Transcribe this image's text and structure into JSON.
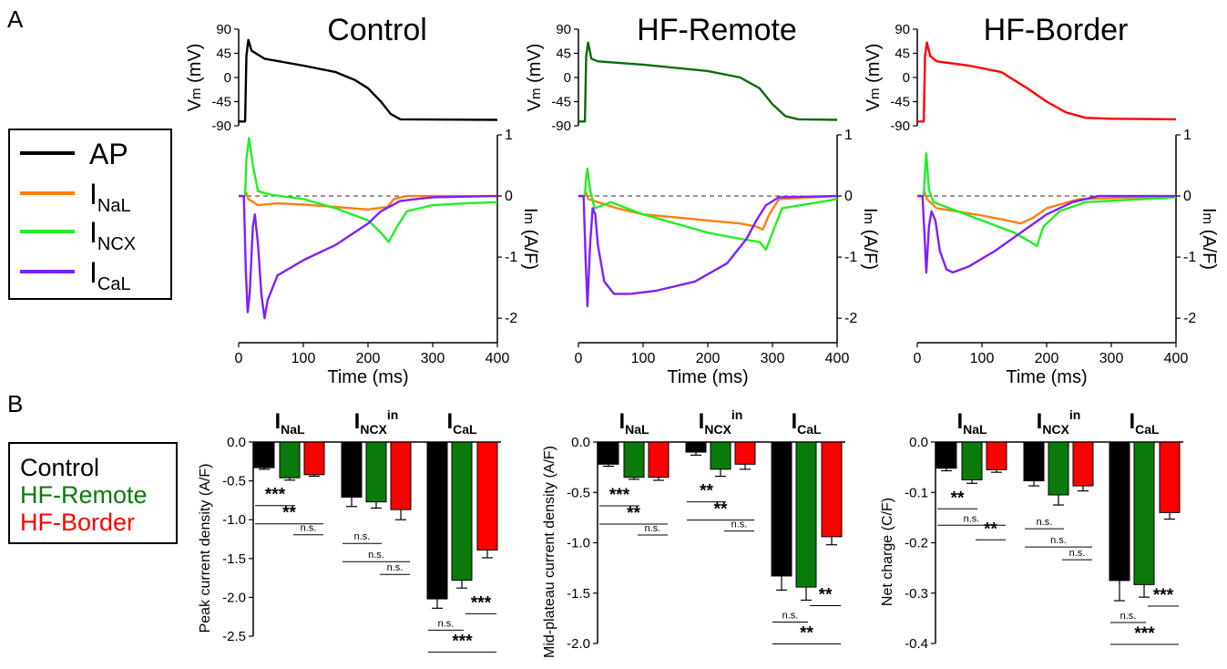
{
  "panel_labels": {
    "a": "A",
    "b": "B"
  },
  "legend_a": {
    "items": [
      {
        "main": "AP",
        "sub": "",
        "color": "#000000"
      },
      {
        "main": "I",
        "sub": "NaL",
        "color": "#ff7f0e"
      },
      {
        "main": "I",
        "sub": "NCX",
        "color": "#22ee22"
      },
      {
        "main": "I",
        "sub": "CaL",
        "color": "#7f1fff"
      }
    ]
  },
  "legend_b": {
    "items": [
      {
        "label": "Control",
        "color": "#000000"
      },
      {
        "label": "HF-Remote",
        "color": "#0a7a0a"
      },
      {
        "label": "HF-Border",
        "color": "#ff0000"
      }
    ]
  },
  "chart_data": [
    {
      "type": "line",
      "title": "Control",
      "ap_color": "#000000",
      "vm_ylim": [
        -90,
        90
      ],
      "vm_ticks": [
        "90",
        "45",
        "0",
        "-45",
        "-90"
      ],
      "vm_ylabel": "V",
      "vm_ylabel_sub": "m",
      "vm_ylabel_unit": " (mV)",
      "im_ylim": [
        -2.4,
        1
      ],
      "im_ticks": [
        "1",
        "0",
        "-1",
        "-2"
      ],
      "im_ylabel": "I",
      "im_ylabel_sub": "m",
      "im_ylabel_unit": " (A/F)",
      "xlim": [
        0,
        400
      ],
      "x_ticks": [
        "0",
        "100",
        "200",
        "300",
        "400"
      ],
      "xlabel": "Time (ms)",
      "series": {
        "AP": [
          [
            0,
            -82
          ],
          [
            10,
            -82
          ],
          [
            12,
            40
          ],
          [
            15,
            70
          ],
          [
            20,
            50
          ],
          [
            40,
            35
          ],
          [
            100,
            22
          ],
          [
            150,
            10
          ],
          [
            180,
            -5
          ],
          [
            200,
            -20
          ],
          [
            220,
            -45
          ],
          [
            235,
            -68
          ],
          [
            250,
            -78
          ],
          [
            400,
            -79
          ]
        ],
        "INaL": [
          [
            0,
            0
          ],
          [
            10,
            0
          ],
          [
            12,
            0.05
          ],
          [
            15,
            -0.05
          ],
          [
            30,
            -0.15
          ],
          [
            60,
            -0.12
          ],
          [
            100,
            -0.14
          ],
          [
            150,
            -0.18
          ],
          [
            200,
            -0.22
          ],
          [
            230,
            -0.18
          ],
          [
            240,
            -0.05
          ],
          [
            260,
            0
          ],
          [
            400,
            0
          ]
        ],
        "INCX": [
          [
            0,
            0
          ],
          [
            10,
            0
          ],
          [
            12,
            0.6
          ],
          [
            16,
            0.95
          ],
          [
            22,
            0.5
          ],
          [
            30,
            0.08
          ],
          [
            50,
            0.02
          ],
          [
            100,
            -0.05
          ],
          [
            150,
            -0.2
          ],
          [
            200,
            -0.4
          ],
          [
            220,
            -0.6
          ],
          [
            232,
            -0.75
          ],
          [
            245,
            -0.5
          ],
          [
            260,
            -0.25
          ],
          [
            300,
            -0.15
          ],
          [
            350,
            -0.12
          ],
          [
            400,
            -0.1
          ]
        ],
        "ICaL": [
          [
            0,
            0
          ],
          [
            8,
            0
          ],
          [
            11,
            -1.2
          ],
          [
            14,
            -1.9
          ],
          [
            17,
            -1.6
          ],
          [
            22,
            -0.5
          ],
          [
            25,
            -0.3
          ],
          [
            30,
            -0.8
          ],
          [
            35,
            -1.6
          ],
          [
            40,
            -2.0
          ],
          [
            45,
            -1.7
          ],
          [
            60,
            -1.3
          ],
          [
            100,
            -1.05
          ],
          [
            150,
            -0.8
          ],
          [
            200,
            -0.45
          ],
          [
            220,
            -0.25
          ],
          [
            250,
            -0.08
          ],
          [
            300,
            -0.02
          ],
          [
            400,
            0
          ]
        ]
      }
    },
    {
      "type": "line",
      "title": "HF-Remote",
      "ap_color": "#0a6b0a",
      "vm_ylim": [
        -90,
        90
      ],
      "vm_ticks": [
        "90",
        "45",
        "0",
        "-45",
        "-90"
      ],
      "vm_ylabel": "V",
      "vm_ylabel_sub": "m",
      "vm_ylabel_unit": " (mV)",
      "im_ylim": [
        -2.4,
        1
      ],
      "im_ticks": [
        "1",
        "0",
        "-1",
        "-2"
      ],
      "im_ylabel": "I",
      "im_ylabel_sub": "m",
      "im_ylabel_unit": " (A/F)",
      "xlim": [
        0,
        400
      ],
      "x_ticks": [
        "0",
        "100",
        "200",
        "300",
        "400"
      ],
      "xlabel": "Time (ms)",
      "series": {
        "AP": [
          [
            0,
            -82
          ],
          [
            10,
            -82
          ],
          [
            12,
            40
          ],
          [
            15,
            65
          ],
          [
            20,
            35
          ],
          [
            30,
            30
          ],
          [
            100,
            24
          ],
          [
            200,
            12
          ],
          [
            250,
            0
          ],
          [
            280,
            -20
          ],
          [
            300,
            -50
          ],
          [
            320,
            -72
          ],
          [
            340,
            -78
          ],
          [
            400,
            -79
          ]
        ],
        "INaL": [
          [
            0,
            0
          ],
          [
            10,
            0
          ],
          [
            12,
            0.05
          ],
          [
            15,
            -0.05
          ],
          [
            30,
            -0.1
          ],
          [
            60,
            -0.2
          ],
          [
            100,
            -0.3
          ],
          [
            150,
            -0.35
          ],
          [
            200,
            -0.4
          ],
          [
            250,
            -0.45
          ],
          [
            275,
            -0.5
          ],
          [
            285,
            -0.55
          ],
          [
            295,
            -0.3
          ],
          [
            310,
            -0.05
          ],
          [
            400,
            0
          ]
        ],
        "INCX": [
          [
            0,
            0
          ],
          [
            10,
            0
          ],
          [
            12,
            0.3
          ],
          [
            14,
            0.45
          ],
          [
            18,
            0.1
          ],
          [
            25,
            -0.2
          ],
          [
            50,
            -0.1
          ],
          [
            100,
            -0.3
          ],
          [
            150,
            -0.45
          ],
          [
            200,
            -0.6
          ],
          [
            250,
            -0.7
          ],
          [
            280,
            -0.75
          ],
          [
            290,
            -0.88
          ],
          [
            300,
            -0.6
          ],
          [
            315,
            -0.2
          ],
          [
            400,
            -0.05
          ]
        ],
        "ICaL": [
          [
            0,
            0
          ],
          [
            8,
            0
          ],
          [
            11,
            -1.0
          ],
          [
            14,
            -1.8
          ],
          [
            18,
            -0.8
          ],
          [
            22,
            -0.2
          ],
          [
            26,
            -0.3
          ],
          [
            30,
            -0.8
          ],
          [
            40,
            -1.4
          ],
          [
            55,
            -1.6
          ],
          [
            80,
            -1.6
          ],
          [
            120,
            -1.55
          ],
          [
            180,
            -1.4
          ],
          [
            230,
            -1.1
          ],
          [
            260,
            -0.7
          ],
          [
            275,
            -0.4
          ],
          [
            290,
            -0.15
          ],
          [
            310,
            -0.02
          ],
          [
            400,
            0
          ]
        ]
      }
    },
    {
      "type": "line",
      "title": "HF-Border",
      "ap_color": "#ff0000",
      "vm_ylim": [
        -90,
        90
      ],
      "vm_ticks": [
        "90",
        "45",
        "0",
        "-45",
        "-90"
      ],
      "vm_ylabel": "V",
      "vm_ylabel_sub": "m",
      "vm_ylabel_unit": " (mV)",
      "im_ylim": [
        -2.4,
        1
      ],
      "im_ticks": [
        "1",
        "0",
        "-1",
        "-2"
      ],
      "im_ylabel": "I",
      "im_ylabel_sub": "m",
      "im_ylabel_unit": " (A/F)",
      "xlim": [
        0,
        400
      ],
      "x_ticks": [
        "0",
        "100",
        "200",
        "300",
        "400"
      ],
      "xlabel": "Time (ms)",
      "series": {
        "AP": [
          [
            0,
            -82
          ],
          [
            10,
            -82
          ],
          [
            12,
            40
          ],
          [
            15,
            65
          ],
          [
            20,
            40
          ],
          [
            30,
            30
          ],
          [
            80,
            22
          ],
          [
            130,
            10
          ],
          [
            170,
            -20
          ],
          [
            200,
            -45
          ],
          [
            230,
            -65
          ],
          [
            260,
            -75
          ],
          [
            300,
            -77
          ],
          [
            400,
            -78
          ]
        ],
        "INaL": [
          [
            0,
            0
          ],
          [
            10,
            0
          ],
          [
            12,
            0.05
          ],
          [
            15,
            -0.05
          ],
          [
            30,
            -0.2
          ],
          [
            60,
            -0.25
          ],
          [
            100,
            -0.32
          ],
          [
            140,
            -0.4
          ],
          [
            160,
            -0.45
          ],
          [
            180,
            -0.35
          ],
          [
            200,
            -0.2
          ],
          [
            250,
            -0.05
          ],
          [
            400,
            0
          ]
        ],
        "INCX": [
          [
            0,
            0
          ],
          [
            10,
            0
          ],
          [
            12,
            0.4
          ],
          [
            14,
            0.7
          ],
          [
            18,
            0.1
          ],
          [
            25,
            -0.1
          ],
          [
            50,
            -0.2
          ],
          [
            100,
            -0.4
          ],
          [
            150,
            -0.6
          ],
          [
            175,
            -0.75
          ],
          [
            185,
            -0.82
          ],
          [
            195,
            -0.5
          ],
          [
            220,
            -0.25
          ],
          [
            260,
            -0.1
          ],
          [
            400,
            -0.02
          ]
        ],
        "ICaL": [
          [
            0,
            0
          ],
          [
            8,
            0
          ],
          [
            11,
            -0.6
          ],
          [
            14,
            -1.25
          ],
          [
            18,
            -0.5
          ],
          [
            22,
            -0.25
          ],
          [
            28,
            -0.4
          ],
          [
            35,
            -0.9
          ],
          [
            45,
            -1.2
          ],
          [
            55,
            -1.25
          ],
          [
            80,
            -1.15
          ],
          [
            120,
            -0.9
          ],
          [
            160,
            -0.6
          ],
          [
            200,
            -0.3
          ],
          [
            240,
            -0.1
          ],
          [
            280,
            0
          ],
          [
            320,
            0
          ],
          [
            400,
            0
          ]
        ]
      }
    },
    {
      "type": "bar",
      "ylabel": "Peak current density (A/F)",
      "ylim": [
        -2.5,
        0
      ],
      "y_ticks": [
        "0.0",
        "-0.5",
        "-1.0",
        "-1.5",
        "-2.0",
        "-2.5"
      ],
      "groups": [
        {
          "main": "I",
          "sub": "NaL",
          "sup": ""
        },
        {
          "main": "I",
          "sub": "NCX",
          "sup": "in"
        },
        {
          "main": "I",
          "sub": "CaL",
          "sup": ""
        }
      ],
      "series": [
        {
          "values": [
            -0.33,
            -0.71,
            -2.02
          ],
          "errors": [
            0.02,
            0.12,
            0.12
          ]
        },
        {
          "values": [
            -0.46,
            -0.77,
            -1.78
          ],
          "errors": [
            0.03,
            0.08,
            0.1
          ]
        },
        {
          "values": [
            -0.42,
            -0.87,
            -1.39
          ],
          "errors": [
            0.02,
            0.13,
            0.1
          ]
        }
      ],
      "significance": [
        {
          "labels": [
            "***",
            "**",
            "n.s."
          ]
        },
        {
          "labels": [
            "n.s.",
            "n.s.",
            "n.s."
          ]
        },
        {
          "labels": [
            "n.s.",
            "***",
            "***"
          ]
        }
      ]
    },
    {
      "type": "bar",
      "ylabel": "Mid-plateau current density (A/F)",
      "ylim": [
        -2.0,
        0
      ],
      "y_ticks": [
        "0.0",
        "-0.5",
        "-1.0",
        "-1.5",
        "-2.0"
      ],
      "groups": [
        {
          "main": "I",
          "sub": "NaL",
          "sup": ""
        },
        {
          "main": "I",
          "sub": "NCX",
          "sup": "in"
        },
        {
          "main": "I",
          "sub": "CaL",
          "sup": ""
        }
      ],
      "series": [
        {
          "values": [
            -0.22,
            -0.1,
            -1.33
          ],
          "errors": [
            0.02,
            0.03,
            0.14
          ]
        },
        {
          "values": [
            -0.35,
            -0.27,
            -1.44
          ],
          "errors": [
            0.02,
            0.07,
            0.13
          ]
        },
        {
          "values": [
            -0.35,
            -0.22,
            -0.94
          ],
          "errors": [
            0.03,
            0.05,
            0.08
          ]
        }
      ],
      "significance": [
        {
          "labels": [
            "***",
            "**",
            "n.s."
          ]
        },
        {
          "labels": [
            "**",
            "**",
            "n.s."
          ]
        },
        {
          "labels": [
            "n.s.",
            "**",
            "**"
          ]
        }
      ]
    },
    {
      "type": "bar",
      "ylabel": "Net charge (C/F)",
      "ylim": [
        -0.4,
        0
      ],
      "y_ticks": [
        "0.0",
        "-0.1",
        "-0.2",
        "-0.3",
        "-0.4"
      ],
      "groups": [
        {
          "main": "I",
          "sub": "NaL",
          "sup": ""
        },
        {
          "main": "I",
          "sub": "NCX",
          "sup": "in"
        },
        {
          "main": "I",
          "sub": "CaL",
          "sup": ""
        }
      ],
      "series": [
        {
          "values": [
            -0.052,
            -0.077,
            -0.275
          ],
          "errors": [
            0.005,
            0.01,
            0.04
          ]
        },
        {
          "values": [
            -0.075,
            -0.105,
            -0.283
          ],
          "errors": [
            0.007,
            0.02,
            0.025
          ]
        },
        {
          "values": [
            -0.055,
            -0.087,
            -0.14
          ],
          "errors": [
            0.005,
            0.01,
            0.013
          ]
        }
      ],
      "significance": [
        {
          "labels": [
            "**",
            "n.s.",
            "**"
          ]
        },
        {
          "labels": [
            "n.s.",
            "n.s.",
            "n.s."
          ]
        },
        {
          "labels": [
            "n.s.",
            "***",
            "***"
          ]
        }
      ]
    }
  ]
}
